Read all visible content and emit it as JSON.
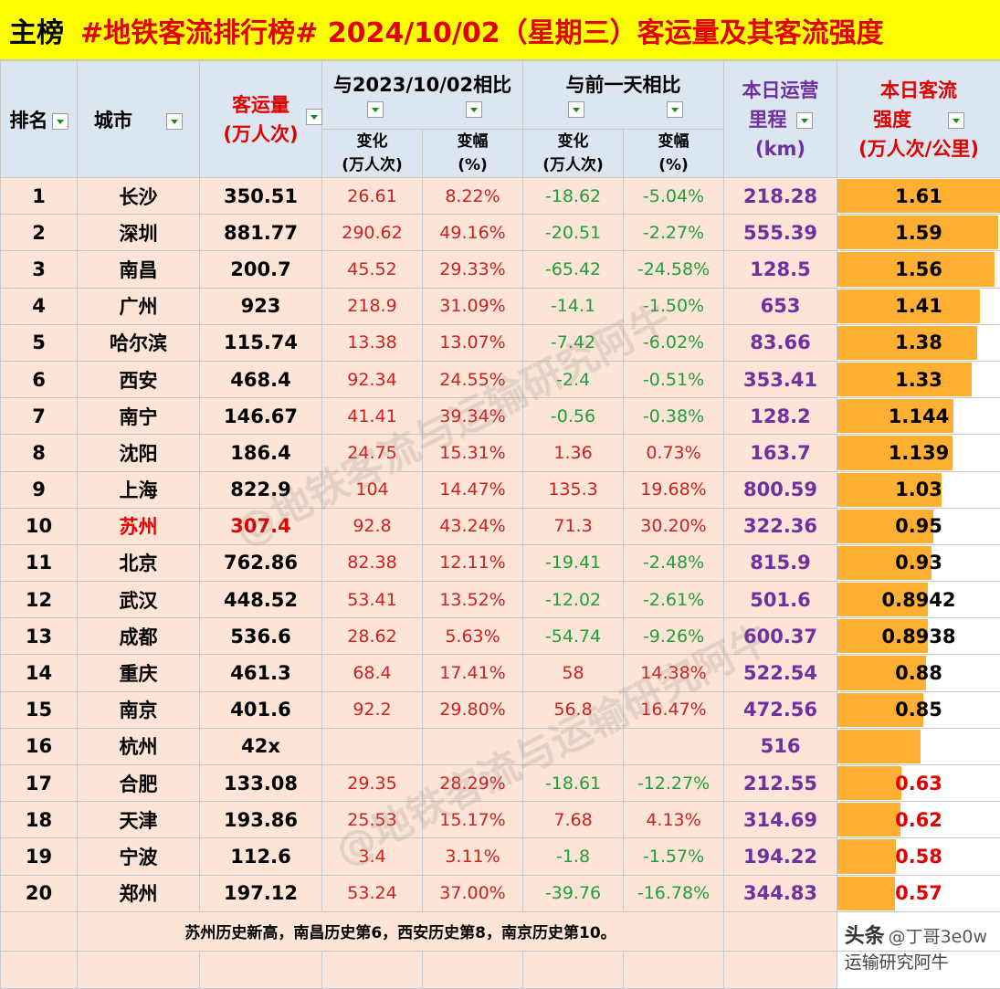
{
  "title": {
    "main": "主榜",
    "rest": "#地铁客流排行榜# 2024/10/02（星期三）客运量及其客流强度"
  },
  "headers": {
    "rank": "排名",
    "city": "城市",
    "pax_line1": "客运量",
    "pax_line2": "(万人次)",
    "yoy_group": "与2023/10/02相比",
    "dod_group": "与前一天相比",
    "km_line1": "本日运营",
    "km_line2": "里程",
    "km_line3": "(km)",
    "int_line1": "本日客流",
    "int_line2": "强度",
    "int_line3": "(万人次/公里)",
    "change_line1": "变化",
    "change_line2": "(万人次)",
    "pct_line1": "变幅",
    "pct_line2": "(%)"
  },
  "rows": [
    {
      "rank": "1",
      "city": "长沙",
      "pax": "350.51",
      "yoy_change": "26.61",
      "yoy_pct": "8.22%",
      "dod_change": "-18.62",
      "dod_pct": "-5.04%",
      "km": "218.28",
      "intensity": "1.61",
      "intensity_value": 1.61
    },
    {
      "rank": "2",
      "city": "深圳",
      "pax": "881.77",
      "yoy_change": "290.62",
      "yoy_pct": "49.16%",
      "dod_change": "-20.51",
      "dod_pct": "-2.27%",
      "km": "555.39",
      "intensity": "1.59",
      "intensity_value": 1.59
    },
    {
      "rank": "3",
      "city": "南昌",
      "pax": "200.7",
      "yoy_change": "45.52",
      "yoy_pct": "29.33%",
      "dod_change": "-65.42",
      "dod_pct": "-24.58%",
      "km": "128.5",
      "intensity": "1.56",
      "intensity_value": 1.56
    },
    {
      "rank": "4",
      "city": "广州",
      "pax": "923",
      "yoy_change": "218.9",
      "yoy_pct": "31.09%",
      "dod_change": "-14.1",
      "dod_pct": "-1.50%",
      "km": "653",
      "intensity": "1.41",
      "intensity_value": 1.41
    },
    {
      "rank": "5",
      "city": "哈尔滨",
      "pax": "115.74",
      "yoy_change": "13.38",
      "yoy_pct": "13.07%",
      "dod_change": "-7.42",
      "dod_pct": "-6.02%",
      "km": "83.66",
      "intensity": "1.38",
      "intensity_value": 1.38
    },
    {
      "rank": "6",
      "city": "西安",
      "pax": "468.4",
      "yoy_change": "92.34",
      "yoy_pct": "24.55%",
      "dod_change": "-2.4",
      "dod_pct": "-0.51%",
      "km": "353.41",
      "intensity": "1.33",
      "intensity_value": 1.33
    },
    {
      "rank": "7",
      "city": "南宁",
      "pax": "146.67",
      "yoy_change": "41.41",
      "yoy_pct": "39.34%",
      "dod_change": "-0.56",
      "dod_pct": "-0.38%",
      "km": "128.2",
      "intensity": "1.144",
      "intensity_value": 1.144
    },
    {
      "rank": "8",
      "city": "沈阳",
      "pax": "186.4",
      "yoy_change": "24.75",
      "yoy_pct": "15.31%",
      "dod_change": "1.36",
      "dod_pct": "0.73%",
      "km": "163.7",
      "intensity": "1.139",
      "intensity_value": 1.139
    },
    {
      "rank": "9",
      "city": "上海",
      "pax": "822.9",
      "yoy_change": "104",
      "yoy_pct": "14.47%",
      "dod_change": "135.3",
      "dod_pct": "19.68%",
      "km": "800.59",
      "intensity": "1.03",
      "intensity_value": 1.03
    },
    {
      "rank": "10",
      "city": "苏州",
      "pax": "307.4",
      "yoy_change": "92.8",
      "yoy_pct": "43.24%",
      "dod_change": "71.3",
      "dod_pct": "30.20%",
      "km": "322.36",
      "intensity": "0.95",
      "intensity_value": 0.95,
      "highlight": true
    },
    {
      "rank": "11",
      "city": "北京",
      "pax": "762.86",
      "yoy_change": "82.38",
      "yoy_pct": "12.11%",
      "dod_change": "-19.41",
      "dod_pct": "-2.48%",
      "km": "815.9",
      "intensity": "0.93",
      "intensity_value": 0.93
    },
    {
      "rank": "12",
      "city": "武汉",
      "pax": "448.52",
      "yoy_change": "53.41",
      "yoy_pct": "13.52%",
      "dod_change": "-12.02",
      "dod_pct": "-2.61%",
      "km": "501.6",
      "intensity": "0.8942",
      "intensity_value": 0.8942
    },
    {
      "rank": "13",
      "city": "成都",
      "pax": "536.6",
      "yoy_change": "28.62",
      "yoy_pct": "5.63%",
      "dod_change": "-54.74",
      "dod_pct": "-9.26%",
      "km": "600.37",
      "intensity": "0.8938",
      "intensity_value": 0.8938
    },
    {
      "rank": "14",
      "city": "重庆",
      "pax": "461.3",
      "yoy_change": "68.4",
      "yoy_pct": "17.41%",
      "dod_change": "58",
      "dod_pct": "14.38%",
      "km": "522.54",
      "intensity": "0.88",
      "intensity_value": 0.88
    },
    {
      "rank": "15",
      "city": "南京",
      "pax": "401.6",
      "yoy_change": "92.2",
      "yoy_pct": "29.80%",
      "dod_change": "56.8",
      "dod_pct": "16.47%",
      "km": "472.56",
      "intensity": "0.85",
      "intensity_value": 0.85
    },
    {
      "rank": "16",
      "city": "杭州",
      "pax": "42x",
      "yoy_change": "",
      "yoy_pct": "",
      "dod_change": "",
      "dod_pct": "",
      "km": "516",
      "intensity": "",
      "intensity_value": 0.82
    },
    {
      "rank": "17",
      "city": "合肥",
      "pax": "133.08",
      "yoy_change": "29.35",
      "yoy_pct": "28.29%",
      "dod_change": "-18.61",
      "dod_pct": "-12.27%",
      "km": "212.55",
      "intensity": "0.63",
      "intensity_value": 0.63,
      "red_intensity": true
    },
    {
      "rank": "18",
      "city": "天津",
      "pax": "193.86",
      "yoy_change": "25.53",
      "yoy_pct": "15.17%",
      "dod_change": "7.68",
      "dod_pct": "4.13%",
      "km": "314.69",
      "intensity": "0.62",
      "intensity_value": 0.62,
      "red_intensity": true
    },
    {
      "rank": "19",
      "city": "宁波",
      "pax": "112.6",
      "yoy_change": "3.4",
      "yoy_pct": "3.11%",
      "dod_change": "-1.8",
      "dod_pct": "-1.57%",
      "km": "194.22",
      "intensity": "0.58",
      "intensity_value": 0.58,
      "red_intensity": true
    },
    {
      "rank": "20",
      "city": "郑州",
      "pax": "197.12",
      "yoy_change": "53.24",
      "yoy_pct": "37.00%",
      "dod_change": "-39.76",
      "dod_pct": "-16.78%",
      "km": "344.83",
      "intensity": "0.57",
      "intensity_value": 0.57,
      "red_intensity": true
    }
  ],
  "note": "苏州历史新高，南昌历史第6，西安历史第8，南京历史第10。",
  "watermark": {
    "logo": "头条",
    "handle": "@丁哥3e0w",
    "line2": "运输研究阿牛",
    "diagonal": "@地铁客流与运输研究阿牛"
  },
  "colors": {
    "title_bg": "#ffff00",
    "header_bg": "#dce6f1",
    "row_bg": "#fce4d6",
    "bar": "#ffb032",
    "increase": "#d02020",
    "decrease": "#1f9e3a",
    "km": "#7030a0"
  }
}
